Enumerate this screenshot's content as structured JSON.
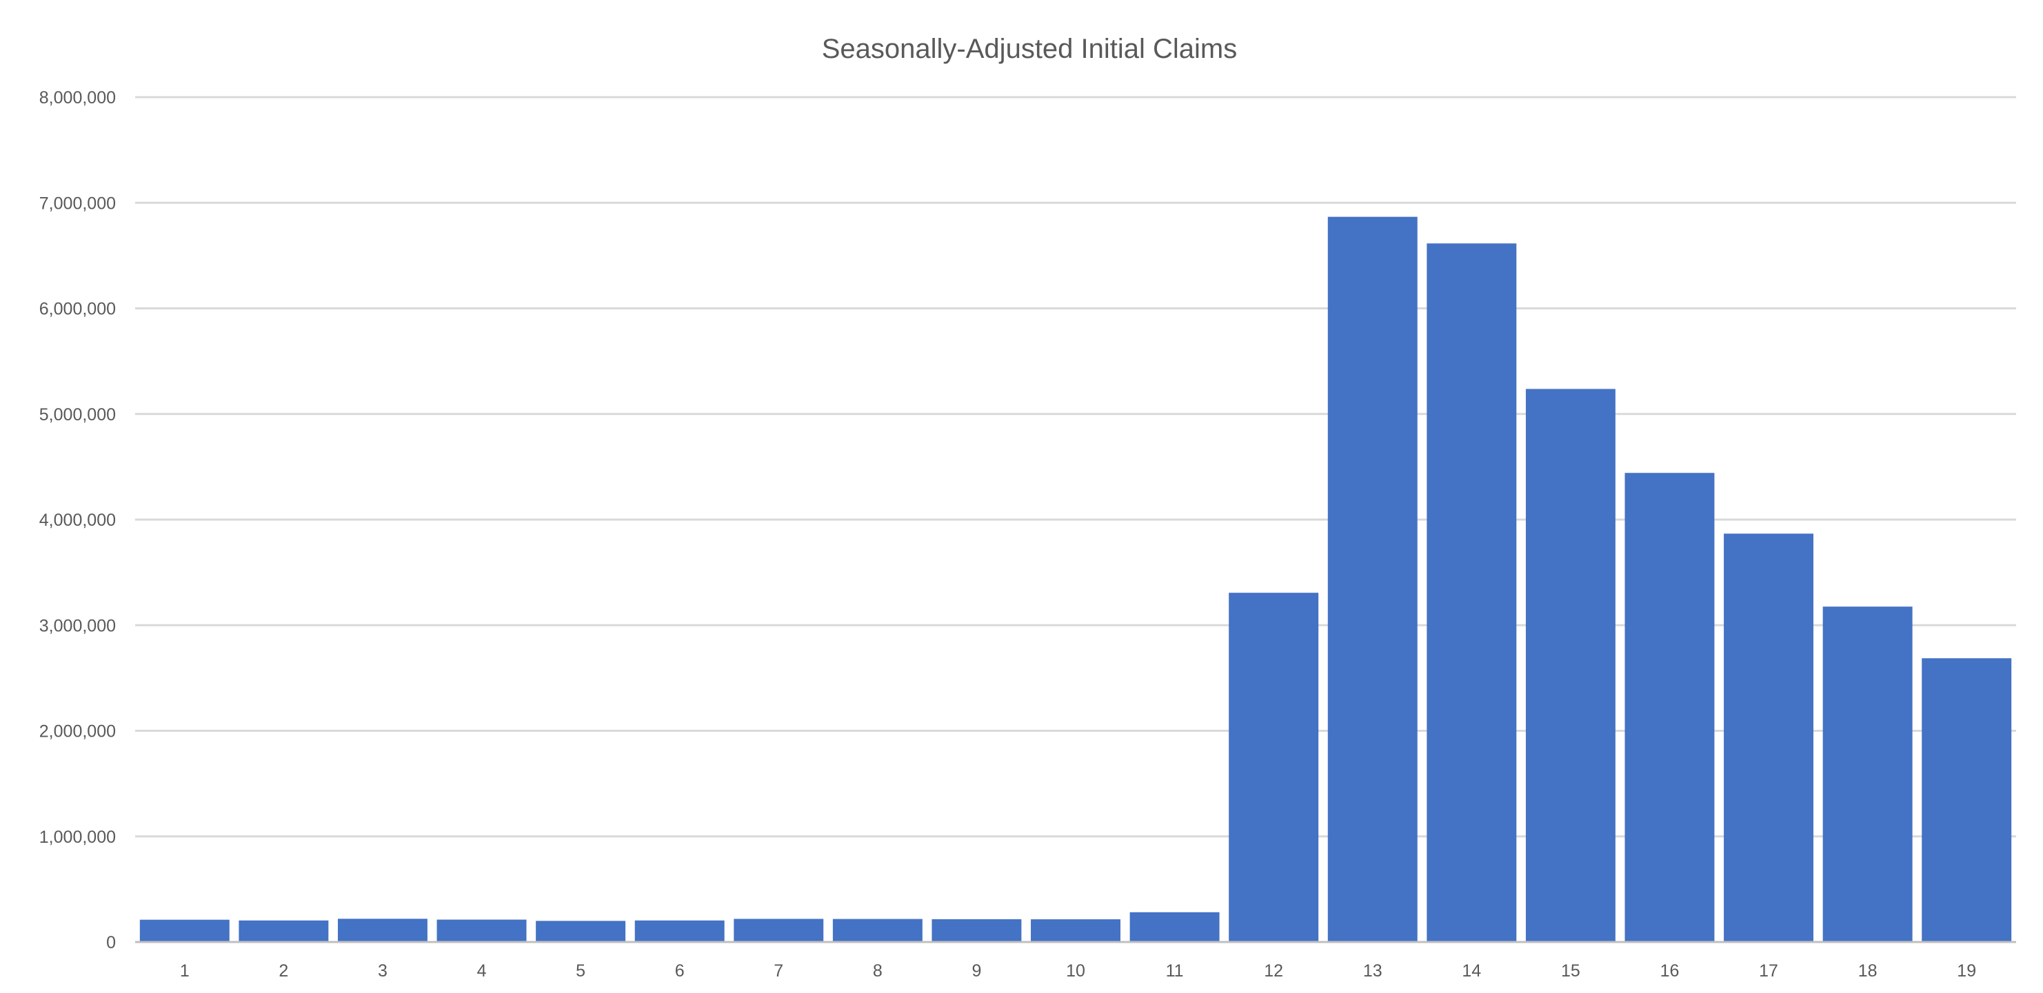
{
  "chart_data": {
    "type": "bar",
    "title": "Seasonally-Adjusted Initial Claims",
    "xlabel": "",
    "ylabel": "",
    "categories": [
      "1",
      "2",
      "3",
      "4",
      "5",
      "6",
      "7",
      "8",
      "9",
      "10",
      "11",
      "12",
      "13",
      "14",
      "15",
      "16",
      "17",
      "18",
      "19"
    ],
    "series": [
      {
        "values": [
          211000,
          204000,
          220000,
          212000,
          200000,
          204000,
          219000,
          218000,
          216000,
          215000,
          282000,
          3307000,
          6867000,
          6615000,
          5237000,
          4442000,
          3867000,
          3176000,
          2687000
        ],
        "color": "#4472c4"
      }
    ],
    "ylim": [
      0,
      8000000
    ],
    "yticks": [
      "0",
      "1,000,000",
      "2,000,000",
      "3,000,000",
      "4,000,000",
      "5,000,000",
      "6,000,000",
      "7,000,000",
      "8,000,000"
    ],
    "grid": true,
    "legend": "none"
  }
}
